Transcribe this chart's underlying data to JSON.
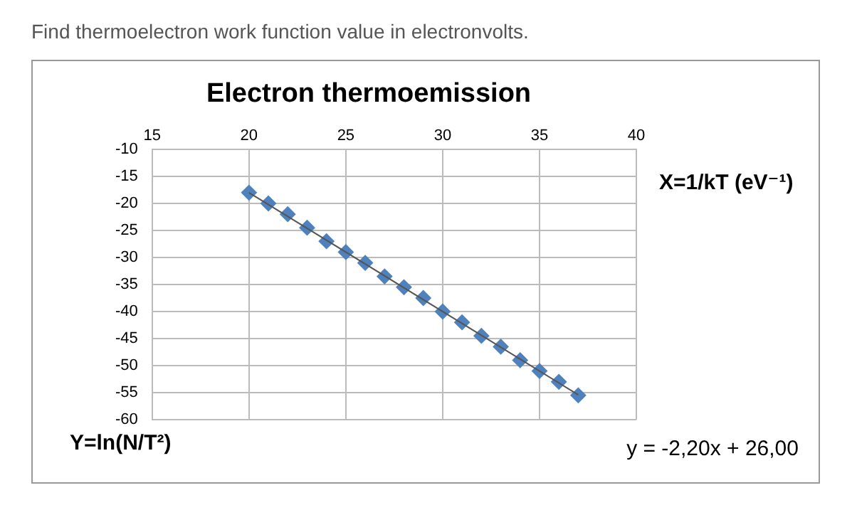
{
  "chart_data": {
    "type": "scatter",
    "title": "Electron thermoemission",
    "xlabel": "X=1/kT (eV⁻¹)",
    "ylabel": "Y=ln(N/T²)",
    "annotations": [
      "Find thermoelectron work function value in electronvolts.",
      "y = -2,20x + 26,00"
    ],
    "x": [
      20,
      21,
      22,
      23,
      24,
      25,
      26,
      27,
      28,
      29,
      30,
      31,
      32,
      33,
      34,
      35,
      36,
      37
    ],
    "series": [
      {
        "color": "#4f81bd",
        "values": [
          -18,
          -20,
          -22,
          -24.5,
          -27,
          -29,
          -31,
          -33.5,
          -35.5,
          -37.5,
          -40,
          -42,
          -44.5,
          -46.5,
          -49,
          -51,
          -53,
          -55.5
        ]
      },
      {
        "type": "line",
        "color": "#555555",
        "x": [
          20,
          37
        ],
        "values": [
          -18,
          -55.4
        ],
        "marker": "none"
      }
    ],
    "xlim": [
      15,
      40
    ],
    "xticks": [
      15,
      20,
      25,
      30,
      35,
      40
    ],
    "ylim": [
      -60,
      -10
    ],
    "yticks": [
      -10,
      -15,
      -20,
      -25,
      -30,
      -35,
      -40,
      -45,
      -50,
      -55,
      -60
    ],
    "grid": true,
    "legend": false,
    "marker": "diamond"
  }
}
